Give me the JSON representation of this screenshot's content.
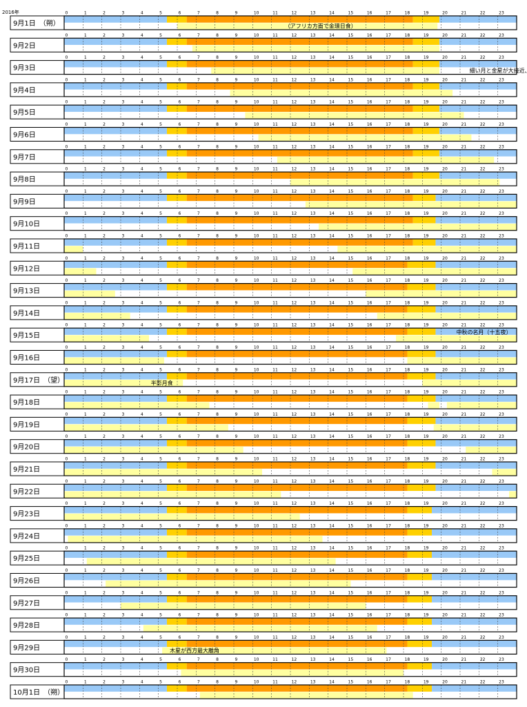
{
  "chart_data": {
    "type": "timeline",
    "year_label": "2016年",
    "watermark": "",
    "x": [
      0,
      1,
      2,
      3,
      4,
      5,
      6,
      7,
      8,
      9,
      10,
      11,
      12,
      13,
      14,
      15,
      16,
      17,
      18,
      19,
      20,
      21,
      22,
      23
    ],
    "xlim": [
      0,
      24
    ],
    "colors": {
      "night": "#99c9f7",
      "twilight": "#ffd000",
      "day": "#ff9900",
      "moon": "#ffffa0",
      "sep": "#ffffff",
      "grid": "#444444",
      "border": "#000000"
    },
    "rows": [
      {
        "label": "9月1日　（朔）",
        "rise": 5.45,
        "set": 19.9,
        "dawn": 5.5,
        "dusk": 18.5,
        "moon": [
          [
            6.0,
            19.8
          ]
        ],
        "note": "（アフリカ方面で金環日食）"
      },
      {
        "label": "9月2日",
        "rise": 5.45,
        "set": 19.9,
        "dawn": 5.5,
        "dusk": 18.5,
        "moon": [
          [
            6.8,
            19.9
          ]
        ],
        "note": ""
      },
      {
        "label": "9月3日",
        "rise": 5.45,
        "set": 19.9,
        "dawn": 5.5,
        "dusk": 18.5,
        "moon": [
          [
            7.8,
            19.9
          ]
        ],
        "note": "細い月と金星が大接近、木星も並ぶ"
      },
      {
        "label": "9月4日",
        "rise": 5.45,
        "set": 19.9,
        "dawn": 5.5,
        "dusk": 18.5,
        "moon": [
          [
            8.8,
            20.6
          ]
        ],
        "note": ""
      },
      {
        "label": "9月5日",
        "rise": 5.45,
        "set": 19.9,
        "dawn": 5.5,
        "dusk": 18.5,
        "moon": [
          [
            9.6,
            21.2
          ]
        ],
        "note": ""
      },
      {
        "label": "9月6日",
        "rise": 5.45,
        "set": 19.9,
        "dawn": 5.5,
        "dusk": 18.5,
        "moon": [
          [
            10.3,
            21.6
          ]
        ],
        "note": ""
      },
      {
        "label": "9月7日",
        "rise": 5.45,
        "set": 19.9,
        "dawn": 5.5,
        "dusk": 18.5,
        "moon": [
          [
            11.3,
            22.8
          ]
        ],
        "note": ""
      },
      {
        "label": "9月8日",
        "rise": 5.45,
        "set": 19.9,
        "dawn": 5.5,
        "dusk": 18.5,
        "moon": [
          [
            12.0,
            23.1
          ]
        ],
        "note": ""
      },
      {
        "label": "9月9日",
        "rise": 5.45,
        "set": 19.7,
        "dawn": 5.5,
        "dusk": 18.5,
        "moon": [
          [
            12.8,
            24.0
          ]
        ],
        "note": ""
      },
      {
        "label": "9月10日",
        "rise": 5.45,
        "set": 19.7,
        "dawn": 5.5,
        "dusk": 18.5,
        "moon": [
          [
            13.5,
            24.0
          ]
        ],
        "note": ""
      },
      {
        "label": "9月11日",
        "rise": 5.45,
        "set": 19.7,
        "dawn": 5.5,
        "dusk": 18.5,
        "moon": [
          [
            0.0,
            1.0
          ],
          [
            14.5,
            24.0
          ]
        ],
        "note": ""
      },
      {
        "label": "9月12日",
        "rise": 5.45,
        "set": 19.7,
        "dawn": 5.5,
        "dusk": 18.2,
        "moon": [
          [
            0.0,
            1.7
          ],
          [
            15.3,
            24.0
          ]
        ],
        "note": ""
      },
      {
        "label": "9月13日",
        "rise": 5.45,
        "set": 19.7,
        "dawn": 5.5,
        "dusk": 18.2,
        "moon": [
          [
            0.0,
            2.7
          ],
          [
            16.0,
            24.0
          ]
        ],
        "note": ""
      },
      {
        "label": "9月14日",
        "rise": 5.45,
        "set": 19.7,
        "dawn": 5.5,
        "dusk": 18.2,
        "moon": [
          [
            0.0,
            3.5
          ],
          [
            16.6,
            24.0
          ]
        ],
        "note": ""
      },
      {
        "label": "9月15日",
        "rise": 5.45,
        "set": 19.7,
        "dawn": 5.5,
        "dusk": 18.2,
        "moon": [
          [
            0.0,
            4.5
          ],
          [
            17.6,
            24.0
          ]
        ],
        "note": "中秋の名月（十五夜）"
      },
      {
        "label": "9月16日",
        "rise": 5.45,
        "set": 19.7,
        "dawn": 5.5,
        "dusk": 18.2,
        "moon": [
          [
            0.0,
            5.3
          ],
          [
            18.2,
            24.0
          ]
        ],
        "note": ""
      },
      {
        "label": "9月17日　（望）",
        "rise": 5.45,
        "set": 19.7,
        "dawn": 5.5,
        "dusk": 18.2,
        "moon": [
          [
            0.0,
            6.3
          ],
          [
            19.0,
            24.0
          ]
        ],
        "note": "半影月食"
      },
      {
        "label": "9月18日",
        "rise": 5.45,
        "set": 19.7,
        "dawn": 5.5,
        "dusk": 18.2,
        "moon": [
          [
            0.0,
            7.7
          ],
          [
            19.3,
            19.9
          ],
          [
            20.3,
            24.0
          ]
        ],
        "note": ""
      },
      {
        "label": "9月19日",
        "rise": 5.45,
        "set": 19.7,
        "dawn": 5.5,
        "dusk": 18.2,
        "moon": [
          [
            0.0,
            8.7
          ],
          [
            19.6,
            24.0
          ]
        ],
        "note": ""
      },
      {
        "label": "9月20日",
        "rise": 5.45,
        "set": 19.7,
        "dawn": 5.5,
        "dusk": 18.2,
        "moon": [
          [
            0.0,
            9.5
          ],
          [
            21.3,
            24.0
          ]
        ],
        "note": ""
      },
      {
        "label": "9月21日",
        "rise": 5.45,
        "set": 19.7,
        "dawn": 5.5,
        "dusk": 18.2,
        "moon": [
          [
            0.0,
            10.5
          ],
          [
            22.7,
            24.0
          ]
        ],
        "note": ""
      },
      {
        "label": "9月22日",
        "rise": 5.45,
        "set": 19.7,
        "dawn": 5.5,
        "dusk": 18.2,
        "moon": [
          [
            0.0,
            11.5
          ],
          [
            23.6,
            24.0
          ]
        ],
        "note": ""
      },
      {
        "label": "9月23日",
        "rise": 5.45,
        "set": 19.5,
        "dawn": 5.5,
        "dusk": 18.2,
        "moon": [
          [
            0.0,
            12.5
          ]
        ],
        "note": ""
      },
      {
        "label": "9月24日",
        "rise": 5.45,
        "set": 19.5,
        "dawn": 5.5,
        "dusk": 18.2,
        "moon": [
          [
            0.2,
            13.7
          ]
        ],
        "note": ""
      },
      {
        "label": "9月25日",
        "rise": 5.45,
        "set": 19.5,
        "dawn": 5.5,
        "dusk": 18.2,
        "moon": [
          [
            1.2,
            14.4
          ]
        ],
        "note": ""
      },
      {
        "label": "9月26日",
        "rise": 5.45,
        "set": 19.5,
        "dawn": 5.5,
        "dusk": 18.2,
        "moon": [
          [
            2.2,
            15.2
          ]
        ],
        "note": ""
      },
      {
        "label": "9月27日",
        "rise": 5.45,
        "set": 19.5,
        "dawn": 5.5,
        "dusk": 18.2,
        "moon": [
          [
            3.0,
            16.0
          ]
        ],
        "note": ""
      },
      {
        "label": "9月28日",
        "rise": 5.45,
        "set": 19.5,
        "dawn": 5.5,
        "dusk": 18.2,
        "moon": [
          [
            4.2,
            16.6
          ]
        ],
        "note": ""
      },
      {
        "label": "9月29日",
        "rise": 5.45,
        "set": 19.5,
        "dawn": 5.5,
        "dusk": 18.2,
        "moon": [
          [
            5.2,
            17.1
          ]
        ],
        "note": "木星が西方最大離角"
      },
      {
        "label": "9月30日",
        "rise": 5.45,
        "set": 19.5,
        "dawn": 5.5,
        "dusk": 18.2,
        "moon": [
          [
            6.2,
            18.0
          ]
        ],
        "note": ""
      },
      {
        "label": "10月1日　（朔）",
        "rise": 5.45,
        "set": 19.5,
        "dawn": 5.5,
        "dusk": 18.2,
        "moon": [
          [
            7.2,
            18.5
          ]
        ],
        "note": ""
      }
    ],
    "notes_layout": {
      "0": {
        "anchor_hour": 11.7,
        "band": "moon"
      },
      "2": {
        "anchor_hour": 21.5,
        "band": "moon"
      },
      "14": {
        "anchor_hour": 20.8,
        "band": "day"
      },
      "16": {
        "anchor_hour": 4.6,
        "band": "moon"
      },
      "28": {
        "anchor_hour": 5.6,
        "band": "moon"
      }
    }
  }
}
